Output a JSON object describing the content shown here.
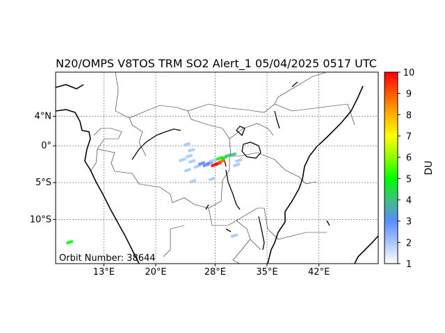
{
  "title": "N20/OMPS V8TOS TRM SO2 Alert_1 05/04/2025 0517 UTC",
  "orbit_label": "Orbit Number: 38644",
  "map": {
    "lon_range": [
      6.5,
      50
    ],
    "lat_range": [
      -16,
      10
    ],
    "x_ticks": [
      {
        "value": 13,
        "label": "13°E"
      },
      {
        "value": 20,
        "label": "20°E"
      },
      {
        "value": 28,
        "label": "28°E"
      },
      {
        "value": 35,
        "label": "35°E"
      },
      {
        "value": 42,
        "label": "42°E"
      }
    ],
    "y_ticks": [
      {
        "value": 4,
        "label": "4°N"
      },
      {
        "value": 0,
        "label": "0°"
      },
      {
        "value": -5,
        "label": "5°S"
      },
      {
        "value": -10,
        "label": "10°S"
      }
    ],
    "grid": true,
    "grid_style": "dashed"
  },
  "colorbar": {
    "label": "DU",
    "min": 1,
    "max": 10,
    "ticks": [
      "1",
      "2",
      "3",
      "4",
      "5",
      "6",
      "7",
      "8",
      "9",
      "10"
    ],
    "colors": [
      "#ffffff",
      "#a9c6ff",
      "#5a8dff",
      "#3fbf7f",
      "#00ff00",
      "#8fff00",
      "#ffff00",
      "#ffb000",
      "#ff5a00",
      "#ff0000"
    ]
  },
  "so2_pixels": [
    {
      "lon": 24.2,
      "lat": 0.2,
      "du": 1.5
    },
    {
      "lon": 24.8,
      "lat": -0.6,
      "du": 1.8
    },
    {
      "lon": 24.5,
      "lat": -1.4,
      "du": 2.0
    },
    {
      "lon": 23.6,
      "lat": -1.9,
      "du": 2.2
    },
    {
      "lon": 24.9,
      "lat": -2.1,
      "du": 2.4
    },
    {
      "lon": 25.6,
      "lat": -2.8,
      "du": 2.0
    },
    {
      "lon": 24.3,
      "lat": -3.3,
      "du": 1.8
    },
    {
      "lon": 26.2,
      "lat": -2.4,
      "du": 2.6
    },
    {
      "lon": 26.8,
      "lat": -2.6,
      "du": 3.0
    },
    {
      "lon": 27.3,
      "lat": -2.3,
      "du": 3.2
    },
    {
      "lon": 27.9,
      "lat": -2.6,
      "du": 9.5
    },
    {
      "lon": 28.4,
      "lat": -2.4,
      "du": 10.0
    },
    {
      "lon": 28.9,
      "lat": -2.1,
      "du": 8.5
    },
    {
      "lon": 29.2,
      "lat": -1.6,
      "du": 4.6
    },
    {
      "lon": 29.8,
      "lat": -1.3,
      "du": 4.2
    },
    {
      "lon": 30.4,
      "lat": -1.2,
      "du": 3.6
    },
    {
      "lon": 28.6,
      "lat": -1.7,
      "du": 5.0
    },
    {
      "lon": 27.7,
      "lat": -2.0,
      "du": 2.4
    },
    {
      "lon": 31.2,
      "lat": -2.0,
      "du": 2.0
    },
    {
      "lon": 30.9,
      "lat": -2.6,
      "du": 1.8
    },
    {
      "lon": 25.0,
      "lat": -4.8,
      "du": 1.6
    },
    {
      "lon": 27.6,
      "lat": -4.5,
      "du": 1.6
    },
    {
      "lon": 28.4,
      "lat": -5.8,
      "du": 1.4
    },
    {
      "lon": 30.6,
      "lat": -12.2,
      "du": 2.4
    },
    {
      "lon": 8.4,
      "lat": -13.1,
      "du": 4.5
    }
  ]
}
